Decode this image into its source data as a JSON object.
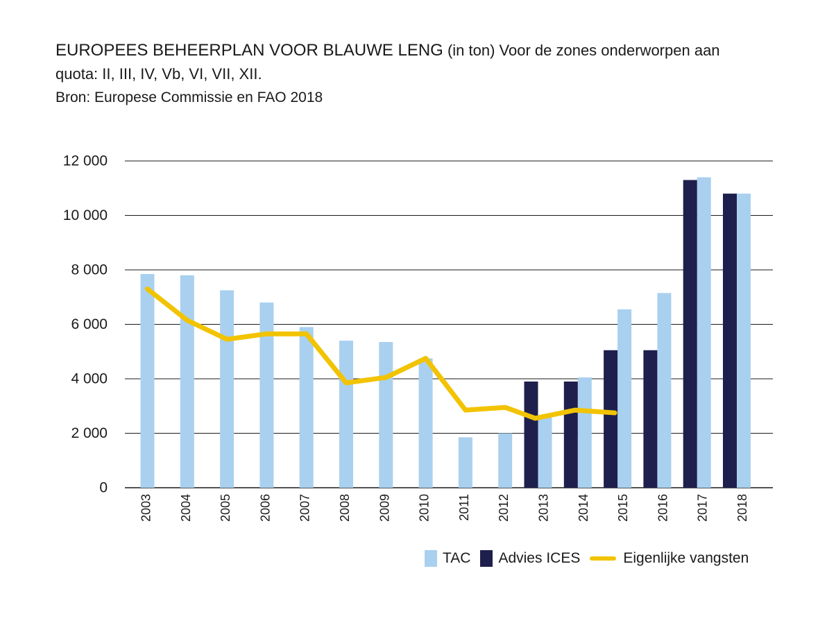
{
  "title": {
    "main": "EUROPEES BEHEERPLAN VOOR BLAUWE LENG",
    "unit": " (in ton) Voor de zones onderworpen aan",
    "line2": "quota: II, III, IV, Vb, VI, VII, XII.",
    "source": "Bron: Europese Commissie en FAO 2018"
  },
  "colors": {
    "tac": "#a9d0ef",
    "ices": "#1f1f4d",
    "catch": "#f2c300",
    "grid": "#1a1a1a"
  },
  "legend": {
    "tac": "TAC",
    "ices": "Advies ICES",
    "catch": "Eigenlijke vangsten"
  },
  "chart_data": {
    "type": "bar",
    "title": "EUROPEES BEHEERPLAN VOOR BLAUWE LENG (in ton) Voor de zones onderworpen aan quota: II, III, IV, Vb, VI, VII, XII.",
    "categories": [
      "2003",
      "2004",
      "2005",
      "2006",
      "2007",
      "2008",
      "2009",
      "2010",
      "2011",
      "2012",
      "2013",
      "2014",
      "2015",
      "2016",
      "2017",
      "2018"
    ],
    "ylim": [
      0,
      12000
    ],
    "yticks": [
      0,
      2000,
      4000,
      6000,
      8000,
      10000,
      12000
    ],
    "ytick_labels": [
      "0",
      "2 000",
      "4 000",
      "6 000",
      "8 000",
      "10 000",
      "12 000"
    ],
    "grid": true,
    "legend_position": "bottom-right",
    "series": [
      {
        "name": "Advies ICES",
        "type": "bar",
        "values": [
          null,
          null,
          null,
          null,
          null,
          null,
          null,
          null,
          null,
          null,
          3900,
          3900,
          5050,
          5050,
          11300,
          10800
        ]
      },
      {
        "name": "TAC",
        "type": "bar",
        "values": [
          7850,
          7800,
          7250,
          6800,
          5900,
          5400,
          5350,
          4750,
          1850,
          2000,
          2650,
          4050,
          6550,
          7150,
          11400,
          10800
        ]
      },
      {
        "name": "Eigenlijke vangsten",
        "type": "line",
        "values": [
          7300,
          6150,
          5450,
          5650,
          5650,
          3850,
          4050,
          4750,
          2850,
          2950,
          2550,
          2850,
          2750,
          null,
          null,
          null
        ]
      }
    ]
  }
}
